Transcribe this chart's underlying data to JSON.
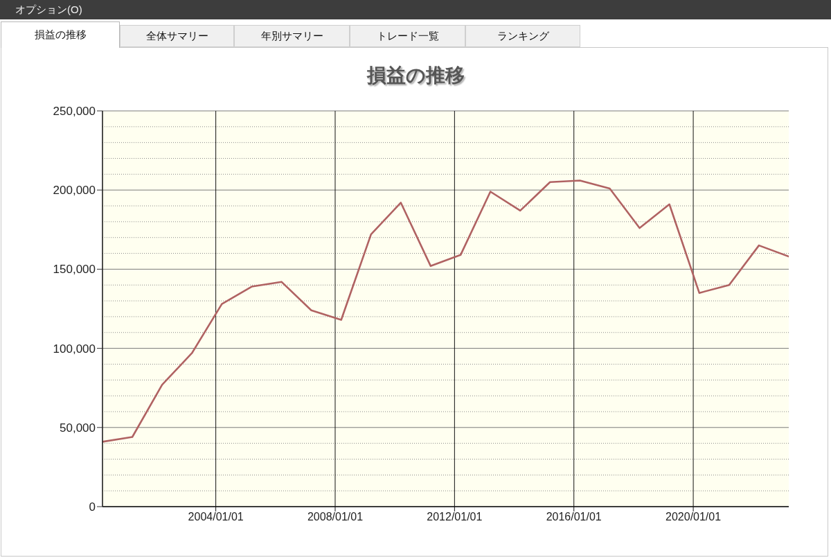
{
  "chart_data": {
    "type": "line",
    "title": "損益の推移",
    "annotations": [
      "オプション(O)",
      "損益の推移",
      "全体サマリー",
      "年別サマリー",
      "トレード一覧",
      "ランキング"
    ],
    "x": [
      "2000-03-15",
      "2001-03-15",
      "2002-03-15",
      "2003-03-15",
      "2004-03-15",
      "2005-03-15",
      "2006-03-15",
      "2007-03-15",
      "2008-03-15",
      "2009-03-15",
      "2010-03-15",
      "2011-03-15",
      "2012-03-15",
      "2013-03-15",
      "2014-03-15",
      "2015-03-15",
      "2016-03-15",
      "2017-03-15",
      "2018-03-15",
      "2019-03-15",
      "2020-03-15",
      "2021-03-15",
      "2022-03-15",
      "2023-03-15"
    ],
    "values": [
      41000,
      44000,
      77000,
      97000,
      128000,
      139000,
      142000,
      124000,
      118000,
      172000,
      192000,
      152000,
      159000,
      199000,
      187000,
      205000,
      206000,
      201000,
      176000,
      191000,
      135000,
      140000,
      165000,
      158000
    ],
    "color": "#b06262",
    "xlim": [
      "2000-03-15",
      "2023-03-15"
    ],
    "xticks": [
      {
        "value": "2004-01-01",
        "label": "2004/01/01"
      },
      {
        "value": "2008-01-01",
        "label": "2008/01/01"
      },
      {
        "value": "2012-01-01",
        "label": "2012/01/01"
      },
      {
        "value": "2016-01-01",
        "label": "2016/01/01"
      },
      {
        "value": "2020-01-01",
        "label": "2020/01/01"
      }
    ],
    "ylim": [
      0,
      250000
    ],
    "yticks": [
      0,
      {
        "value": 10000,
        "label": null
      },
      {
        "value": 20000,
        "label": null
      },
      {
        "value": 30000,
        "label": null
      },
      {
        "value": 40000,
        "label": null
      },
      {
        "value": 50000,
        "label": "50,000"
      },
      {
        "value": 60000,
        "label": null
      },
      {
        "value": 70000,
        "label": null
      },
      {
        "value": 80000,
        "label": null
      },
      {
        "value": 90000,
        "label": null
      },
      {
        "value": 100000,
        "label": "100,000"
      },
      {
        "value": 110000,
        "label": null
      },
      {
        "value": 120000,
        "label": null
      },
      {
        "value": 130000,
        "label": null
      },
      {
        "value": 140000,
        "label": null
      },
      {
        "value": 150000,
        "label": "150,000"
      },
      {
        "value": 160000,
        "label": null
      },
      {
        "value": 170000,
        "label": null
      },
      {
        "value": 180000,
        "label": null
      },
      {
        "value": 190000,
        "label": null
      },
      {
        "value": 200000,
        "label": "200,000"
      },
      {
        "value": 210000,
        "label": null
      },
      {
        "value": 220000,
        "label": null
      },
      {
        "value": 230000,
        "label": null
      },
      {
        "value": 240000,
        "label": null
      },
      {
        "value": 250000,
        "label": "250,000"
      }
    ],
    "grid": true,
    "marker": "none"
  }
}
